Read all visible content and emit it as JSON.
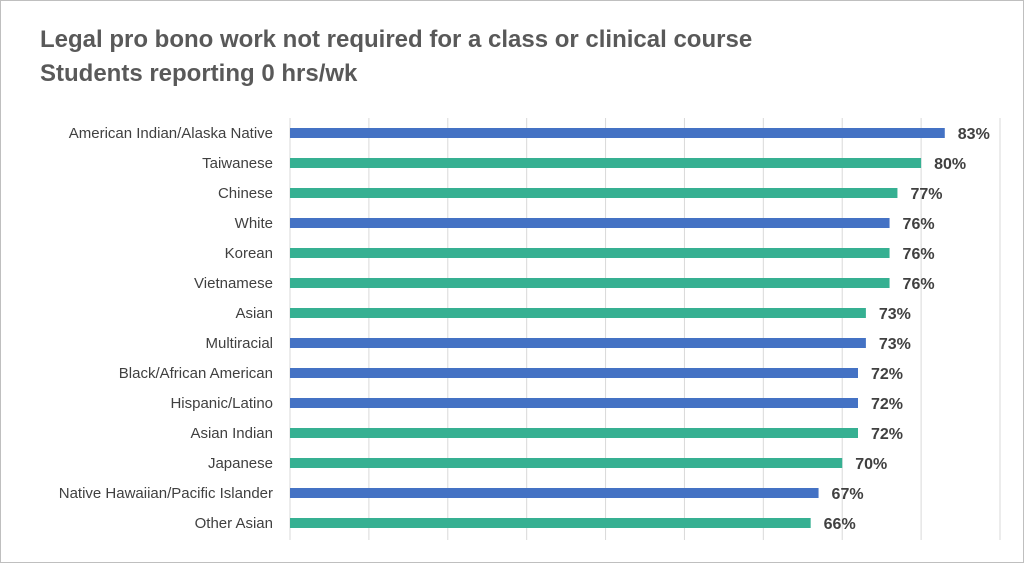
{
  "chart_data": {
    "type": "bar",
    "orientation": "horizontal",
    "title": "Legal pro bono work not required for a class or clinical course",
    "subtitle": "Students reporting 0 hrs/wk",
    "xlabel": "",
    "ylabel": "",
    "xlim": [
      0,
      90
    ],
    "grid": true,
    "legend": "none",
    "value_format": "percent",
    "colors": {
      "blue": "#4472c4",
      "teal": "#36b092"
    },
    "bars": [
      {
        "category": "American Indian/Alaska Native",
        "value": 83,
        "label": "83%",
        "color": "blue"
      },
      {
        "category": "Taiwanese",
        "value": 80,
        "label": "80%",
        "color": "teal"
      },
      {
        "category": "Chinese",
        "value": 77,
        "label": "77%",
        "color": "teal"
      },
      {
        "category": "White",
        "value": 76,
        "label": "76%",
        "color": "blue"
      },
      {
        "category": "Korean",
        "value": 76,
        "label": "76%",
        "color": "teal"
      },
      {
        "category": "Vietnamese",
        "value": 76,
        "label": "76%",
        "color": "teal"
      },
      {
        "category": "Asian",
        "value": 73,
        "label": "73%",
        "color": "teal"
      },
      {
        "category": "Multiracial",
        "value": 73,
        "label": "73%",
        "color": "blue"
      },
      {
        "category": "Black/African American",
        "value": 72,
        "label": "72%",
        "color": "blue"
      },
      {
        "category": "Hispanic/Latino",
        "value": 72,
        "label": "72%",
        "color": "blue"
      },
      {
        "category": "Asian Indian",
        "value": 72,
        "label": "72%",
        "color": "teal"
      },
      {
        "category": "Japanese",
        "value": 70,
        "label": "70%",
        "color": "teal"
      },
      {
        "category": "Native Hawaiian/Pacific Islander",
        "value": 67,
        "label": "67%",
        "color": "blue"
      },
      {
        "category": "Other Asian",
        "value": 66,
        "label": "66%",
        "color": "teal"
      }
    ]
  }
}
